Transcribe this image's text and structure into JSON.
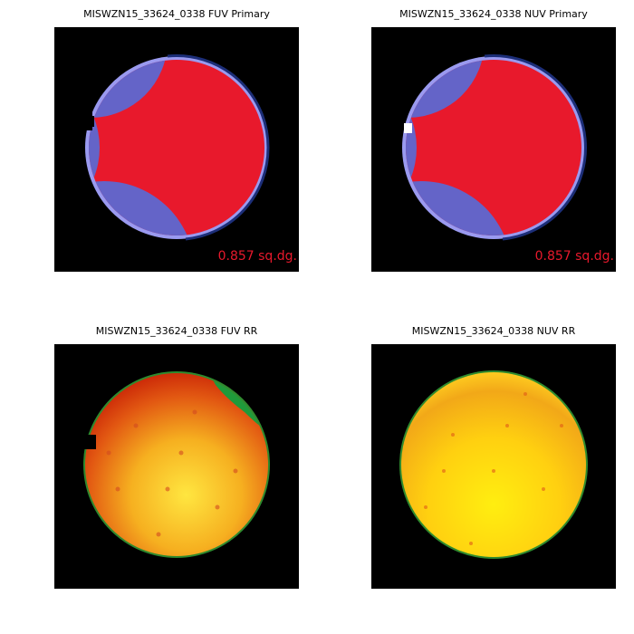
{
  "panels": [
    {
      "title": "MISWZN15_33624_0338 FUV Primary",
      "area": "0.857 sq.dg."
    },
    {
      "title": "MISWZN15_33624_0338 NUV Primary",
      "area": "0.857 sq.dg."
    },
    {
      "title": "MISWZN15_33624_0338 FUV RR"
    },
    {
      "title": "MISWZN15_33624_0338 NUV RR"
    }
  ]
}
